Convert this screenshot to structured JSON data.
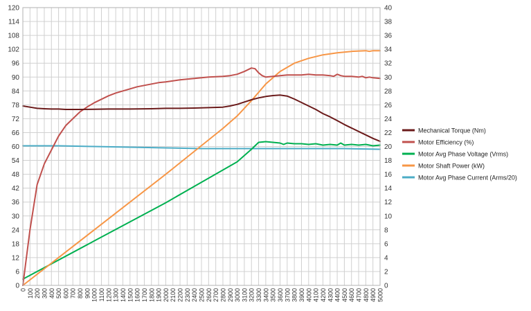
{
  "chart_data": {
    "type": "line",
    "x_ticks": [
      0,
      100,
      200,
      300,
      400,
      500,
      600,
      700,
      800,
      900,
      1000,
      1100,
      1200,
      1300,
      1400,
      1500,
      1600,
      1700,
      1800,
      1900,
      2000,
      2100,
      2200,
      2300,
      2400,
      2500,
      2600,
      2700,
      2800,
      2900,
      3000,
      3100,
      3200,
      3300,
      3400,
      3500,
      3600,
      3700,
      3800,
      3900,
      4000,
      4100,
      4200,
      4300,
      4400,
      4500,
      4600,
      4700,
      4800,
      4900,
      5000
    ],
    "xlim": [
      0,
      5000
    ],
    "ylim_left": [
      0,
      120
    ],
    "y_ticks_left": [
      0,
      6,
      12,
      18,
      24,
      30,
      36,
      42,
      48,
      54,
      60,
      66,
      72,
      78,
      84,
      90,
      96,
      102,
      108,
      114,
      120
    ],
    "ylim_right": [
      0,
      40
    ],
    "y_ticks_right": [
      0,
      2,
      4,
      6,
      8,
      10,
      12,
      14,
      16,
      18,
      20,
      22,
      24,
      26,
      28,
      30,
      32,
      34,
      36,
      38,
      40
    ],
    "grid": true,
    "legend_position": "right",
    "series": [
      {
        "name": "Mechanical Torque   (Nm)",
        "color": "#6b1a1a",
        "axis": "left",
        "points": [
          [
            0,
            77.5
          ],
          [
            100,
            77
          ],
          [
            200,
            76.5
          ],
          [
            300,
            76.3
          ],
          [
            400,
            76.2
          ],
          [
            500,
            76.2
          ],
          [
            600,
            76
          ],
          [
            800,
            76
          ],
          [
            1000,
            76.1
          ],
          [
            1200,
            76.2
          ],
          [
            1500,
            76.2
          ],
          [
            1800,
            76.3
          ],
          [
            2000,
            76.5
          ],
          [
            2200,
            76.5
          ],
          [
            2400,
            76.6
          ],
          [
            2600,
            76.8
          ],
          [
            2800,
            77
          ],
          [
            2900,
            77.5
          ],
          [
            3000,
            78.2
          ],
          [
            3100,
            79.2
          ],
          [
            3200,
            80.2
          ],
          [
            3300,
            81
          ],
          [
            3400,
            81.6
          ],
          [
            3500,
            82
          ],
          [
            3600,
            82.2
          ],
          [
            3700,
            81.8
          ],
          [
            3800,
            80.5
          ],
          [
            3900,
            79
          ],
          [
            4000,
            77.5
          ],
          [
            4100,
            76
          ],
          [
            4200,
            74.2
          ],
          [
            4300,
            72.8
          ],
          [
            4400,
            71.2
          ],
          [
            4500,
            69.5
          ],
          [
            4600,
            68
          ],
          [
            4700,
            66.5
          ],
          [
            4800,
            65
          ],
          [
            4900,
            63.5
          ],
          [
            5000,
            62.2
          ]
        ]
      },
      {
        "name": "Motor Efficiency (%)",
        "color": "#c0504d",
        "axis": "right",
        "points": [
          [
            0,
            0
          ],
          [
            100,
            8
          ],
          [
            200,
            14.5
          ],
          [
            300,
            17.5
          ],
          [
            400,
            19.5
          ],
          [
            500,
            21.5
          ],
          [
            600,
            23
          ],
          [
            700,
            24
          ],
          [
            800,
            25
          ],
          [
            900,
            25.7
          ],
          [
            1000,
            26.3
          ],
          [
            1100,
            26.8
          ],
          [
            1200,
            27.3
          ],
          [
            1300,
            27.7
          ],
          [
            1400,
            28
          ],
          [
            1500,
            28.3
          ],
          [
            1600,
            28.6
          ],
          [
            1700,
            28.8
          ],
          [
            1800,
            29
          ],
          [
            1900,
            29.2
          ],
          [
            2000,
            29.3
          ],
          [
            2200,
            29.6
          ],
          [
            2400,
            29.8
          ],
          [
            2600,
            30
          ],
          [
            2800,
            30.1
          ],
          [
            2900,
            30.2
          ],
          [
            3000,
            30.4
          ],
          [
            3100,
            30.8
          ],
          [
            3200,
            31.3
          ],
          [
            3250,
            31.2
          ],
          [
            3300,
            30.6
          ],
          [
            3350,
            30.2
          ],
          [
            3400,
            30
          ],
          [
            3500,
            30.1
          ],
          [
            3600,
            30.2
          ],
          [
            3700,
            30.3
          ],
          [
            3800,
            30.3
          ],
          [
            3900,
            30.3
          ],
          [
            4000,
            30.4
          ],
          [
            4100,
            30.3
          ],
          [
            4200,
            30.3
          ],
          [
            4300,
            30.2
          ],
          [
            4350,
            30.1
          ],
          [
            4400,
            30.4
          ],
          [
            4450,
            30.2
          ],
          [
            4500,
            30.1
          ],
          [
            4600,
            30.1
          ],
          [
            4700,
            30
          ],
          [
            4750,
            30.1
          ],
          [
            4800,
            29.9
          ],
          [
            4850,
            30
          ],
          [
            4900,
            29.9
          ],
          [
            5000,
            29.8
          ]
        ]
      },
      {
        "name": "Motor Avg Phase Voltage (Vrms)",
        "color": "#00b050",
        "axis": "right",
        "points": [
          [
            0,
            0.9
          ],
          [
            1000,
            6.4
          ],
          [
            2000,
            11.9
          ],
          [
            3000,
            17.8
          ],
          [
            3200,
            19.6
          ],
          [
            3300,
            20.6
          ],
          [
            3400,
            20.7
          ],
          [
            3500,
            20.6
          ],
          [
            3600,
            20.5
          ],
          [
            3650,
            20.3
          ],
          [
            3700,
            20.5
          ],
          [
            3800,
            20.4
          ],
          [
            3900,
            20.4
          ],
          [
            4000,
            20.3
          ],
          [
            4100,
            20.4
          ],
          [
            4200,
            20.2
          ],
          [
            4300,
            20.3
          ],
          [
            4400,
            20.2
          ],
          [
            4450,
            20.5
          ],
          [
            4500,
            20.2
          ],
          [
            4600,
            20.3
          ],
          [
            4700,
            20.2
          ],
          [
            4800,
            20.3
          ],
          [
            4900,
            20.1
          ],
          [
            5000,
            20.2
          ]
        ]
      },
      {
        "name": "Motor Shaft Power (kW)",
        "color": "#f79646",
        "axis": "right",
        "points": [
          [
            0,
            0
          ],
          [
            1000,
            8
          ],
          [
            2000,
            16
          ],
          [
            2800,
            22.6
          ],
          [
            3000,
            24.4
          ],
          [
            3200,
            26.6
          ],
          [
            3400,
            29
          ],
          [
            3600,
            30.8
          ],
          [
            3800,
            32
          ],
          [
            4000,
            32.7
          ],
          [
            4200,
            33.2
          ],
          [
            4400,
            33.5
          ],
          [
            4600,
            33.7
          ],
          [
            4800,
            33.8
          ],
          [
            4850,
            33.7
          ],
          [
            4900,
            33.8
          ],
          [
            5000,
            33.8
          ]
        ]
      },
      {
        "name": "Motor Avg Phase Current (Arms/20)",
        "color": "#4bacc6",
        "axis": "right",
        "points": [
          [
            0,
            20.1
          ],
          [
            500,
            20.1
          ],
          [
            1000,
            20
          ],
          [
            1500,
            19.9
          ],
          [
            2000,
            19.8
          ],
          [
            2500,
            19.7
          ],
          [
            3000,
            19.7
          ],
          [
            3500,
            19.7
          ],
          [
            4000,
            19.7
          ],
          [
            4500,
            19.7
          ],
          [
            5000,
            19.6
          ]
        ]
      }
    ]
  }
}
